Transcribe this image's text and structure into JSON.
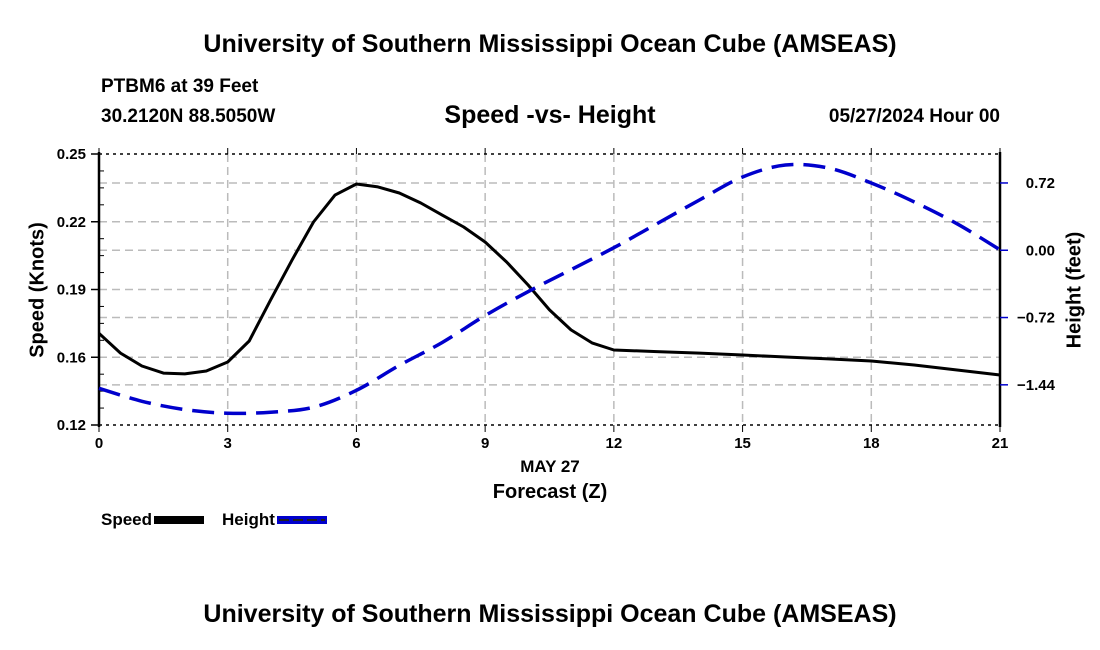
{
  "header": {
    "title": "University of Southern Mississippi Ocean Cube (AMSEAS)",
    "station": "PTBM6 at 39 Feet",
    "coords": "30.2120N  88.5050W",
    "datetime": "05/27/2024 Hour 00"
  },
  "footer": {
    "title": "University of Southern Mississippi Ocean Cube (AMSEAS)"
  },
  "colors": {
    "speed": "#000000",
    "height": "#0000cc",
    "grid": "#bbbbbb"
  },
  "chart_data": {
    "type": "line",
    "title": "Speed -vs- Height",
    "xlabel": "Forecast (Z)",
    "xdate_label": "MAY 27",
    "ylabel": "Speed (Knots)",
    "y2label": "Height (feet)",
    "grid": true,
    "legend_position": "bottom-left",
    "xlim": [
      0,
      21
    ],
    "xticks": [
      0,
      3,
      6,
      9,
      12,
      15,
      18,
      21
    ],
    "xtick_labels": [
      "0",
      "3",
      "6",
      "9",
      "12",
      "15",
      "18",
      "21"
    ],
    "ylim": [
      0.125,
      0.255
    ],
    "yticks": [
      0.255,
      0.2225,
      0.19,
      0.1575,
      0.125
    ],
    "ytick_labels": [
      "0.25",
      "0.22",
      "0.19",
      "0.16",
      "0.12"
    ],
    "y2lim": [
      -1.87,
      1.03
    ],
    "y2ticks": [
      0.72,
      0.0,
      -0.72,
      -1.44
    ],
    "y2tick_labels": [
      "0.72",
      "0.00",
      "−0.72",
      "−1.44"
    ],
    "series": [
      {
        "name": "Speed",
        "axis": "left",
        "style": "solid",
        "x": [
          0,
          0.5,
          1,
          1.5,
          2,
          2.5,
          3,
          3.5,
          4,
          4.5,
          5,
          5.5,
          6,
          6.5,
          7,
          7.5,
          8,
          8.5,
          9,
          9.5,
          10,
          10.5,
          11,
          11.5,
          12,
          13,
          14,
          15,
          16,
          17,
          18,
          19,
          20,
          21
        ],
        "values": [
          0.169,
          0.1595,
          0.1533,
          0.1499,
          0.1495,
          0.1509,
          0.1552,
          0.1653,
          0.185,
          0.2042,
          0.2224,
          0.2353,
          0.2406,
          0.2392,
          0.2363,
          0.2315,
          0.2257,
          0.22,
          0.2128,
          0.2032,
          0.1922,
          0.1802,
          0.1706,
          0.1643,
          0.161,
          0.1602,
          0.1595,
          0.1586,
          0.1576,
          0.1567,
          0.1557,
          0.1538,
          0.1514,
          0.149
        ]
      },
      {
        "name": "Height",
        "axis": "right",
        "style": "dashed",
        "x": [
          0,
          1,
          2,
          3,
          4,
          5,
          6,
          7,
          8,
          9,
          10,
          11,
          12,
          13,
          14,
          15,
          16,
          17,
          18,
          19,
          20,
          21
        ],
        "values": [
          -1.477,
          -1.616,
          -1.705,
          -1.744,
          -1.733,
          -1.68,
          -1.499,
          -1.232,
          -0.987,
          -0.699,
          -0.443,
          -0.208,
          0.027,
          0.283,
          0.539,
          0.784,
          0.912,
          0.88,
          0.72,
          0.517,
          0.283,
          0.005
        ]
      }
    ]
  }
}
